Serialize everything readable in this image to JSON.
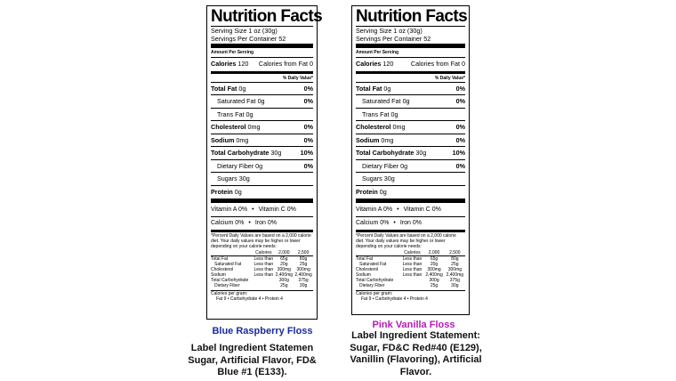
{
  "labels": [
    {
      "title": "Nutrition Facts",
      "serving_size": "Serving Size 1 oz (30g)",
      "servings_per_container": "Servings Per Container 52",
      "amount_per_serving": "Amount Per Serving",
      "calories_label": "Calories",
      "calories_value": "120",
      "calories_fat": "Calories from Fat 0",
      "daily_value_header": "% Daily Value*",
      "nutrients": [
        {
          "name": "Total Fat",
          "amount": "0g",
          "dv": "0%",
          "bold": true,
          "indent": false
        },
        {
          "name": "Saturated Fat",
          "amount": "0g",
          "dv": "0%",
          "bold": false,
          "indent": true
        },
        {
          "name": "Trans Fat",
          "amount": "0g",
          "dv": "",
          "bold": false,
          "indent": true
        },
        {
          "name": "Cholesterol",
          "amount": "0mg",
          "dv": "0%",
          "bold": true,
          "indent": false
        },
        {
          "name": "Sodium",
          "amount": "0mg",
          "dv": "0%",
          "bold": true,
          "indent": false
        },
        {
          "name": "Total Carbohydrate",
          "amount": "30g",
          "dv": "10%",
          "bold": true,
          "indent": false
        },
        {
          "name": "Dietary Fiber",
          "amount": "0g",
          "dv": "0%",
          "bold": false,
          "indent": true
        },
        {
          "name": "Sugars",
          "amount": "30g",
          "dv": "",
          "bold": false,
          "indent": true
        },
        {
          "name": "Protein",
          "amount": "0g",
          "dv": "",
          "bold": true,
          "indent": false
        }
      ],
      "vitamins": [
        {
          "left": "Vitamin A 0%",
          "right": "Vitamin C 0%"
        },
        {
          "left": "Calcium 0%",
          "right": "Iron 0%"
        }
      ],
      "footnote_lines": [
        "*Percent Daily Values are based on a 2,000 calorie",
        "diet. Your daily values may be higher or lower",
        "depending on your calorie needs:"
      ],
      "fn_header": [
        "",
        "Calories",
        "2,000",
        "2,500"
      ],
      "fn_rows": [
        [
          "Total Fat",
          "Less than",
          "65g",
          "80g"
        ],
        [
          "Saturated Fat",
          "Less than",
          "20g",
          "25g"
        ],
        [
          "Cholesterol",
          "Less than",
          "300mg",
          "300mg"
        ],
        [
          "Sodium",
          "Less than",
          "2,400mg",
          "2,400mg"
        ],
        [
          "Total Carbohydrate",
          "",
          "300g",
          "375g"
        ],
        [
          "Dietary Fiber",
          "",
          "25g",
          "30g"
        ]
      ],
      "calories_per_gram": "Calories per gram:",
      "per_gram_values": "Fat 9  •  Carbohydrate 4  •  Protein 4"
    },
    {
      "title": "Nutrition Facts",
      "serving_size": "Serving Size 1 oz (30g)",
      "servings_per_container": "Servings Per Container 52",
      "amount_per_serving": "Amount Per Serving",
      "calories_label": "Calories",
      "calories_value": "120",
      "calories_fat": "Calories from Fat 0",
      "daily_value_header": "% Daily Value*",
      "nutrients": [
        {
          "name": "Total Fat",
          "amount": "0g",
          "dv": "0%",
          "bold": true,
          "indent": false
        },
        {
          "name": "Saturated Fat",
          "amount": "0g",
          "dv": "0%",
          "bold": false,
          "indent": true
        },
        {
          "name": "Trans Fat",
          "amount": "0g",
          "dv": "",
          "bold": false,
          "indent": true
        },
        {
          "name": "Cholesterol",
          "amount": "0mg",
          "dv": "0%",
          "bold": true,
          "indent": false
        },
        {
          "name": "Sodium",
          "amount": "0mg",
          "dv": "0%",
          "bold": true,
          "indent": false
        },
        {
          "name": "Total Carbohydrate",
          "amount": "30g",
          "dv": "10%",
          "bold": true,
          "indent": false
        },
        {
          "name": "Dietary Fiber",
          "amount": "0g",
          "dv": "0%",
          "bold": false,
          "indent": true
        },
        {
          "name": "Sugars",
          "amount": "30g",
          "dv": "",
          "bold": false,
          "indent": true
        },
        {
          "name": "Protein",
          "amount": "0g",
          "dv": "",
          "bold": true,
          "indent": false
        }
      ],
      "vitamins": [
        {
          "left": "Vitamin A 0%",
          "right": "Vitamin C 0%"
        },
        {
          "left": "Calcium 0%",
          "right": "Iron 0%"
        }
      ],
      "footnote_lines": [
        "*Percent Daily Values are based on a 2,000 calorie",
        "diet. Your daily values may be higher or lower",
        "depending on your calorie needs:"
      ],
      "fn_header": [
        "",
        "Calories",
        "2,000",
        "2,500"
      ],
      "fn_rows": [
        [
          "Total Fat",
          "Less than",
          "65g",
          "80g"
        ],
        [
          "Saturated Fat",
          "Less than",
          "20g",
          "25g"
        ],
        [
          "Cholesterol",
          "Less than",
          "300mg",
          "300mg"
        ],
        [
          "Sodium",
          "Less than",
          "2,400mg",
          "2,400mg"
        ],
        [
          "Total Carbohydrate",
          "",
          "300g",
          "375g"
        ],
        [
          "Dietary Fiber",
          "",
          "25g",
          "30g"
        ]
      ],
      "calories_per_gram": "Calories per gram:",
      "per_gram_values": "Fat 9  •  Carbohydrate 4  •  Protein 4"
    }
  ],
  "captions": {
    "left": {
      "title": "Blue Raspberry Floss",
      "lines": [
        "Label Ingredient Statemen",
        "Sugar, Artificial Flavor, FD&",
        "Blue #1 (E133)."
      ]
    },
    "right": {
      "title": "Pink Vanilla Floss",
      "lines": [
        "Label Ingredient Statement:",
        "Sugar, FD&C Red#40 (E129),",
        "Vanillin (Flavoring), Artificial",
        "Flavor."
      ]
    }
  },
  "colors": {
    "left_title": "#1a2b9c",
    "right_title": "#b51ab5"
  }
}
